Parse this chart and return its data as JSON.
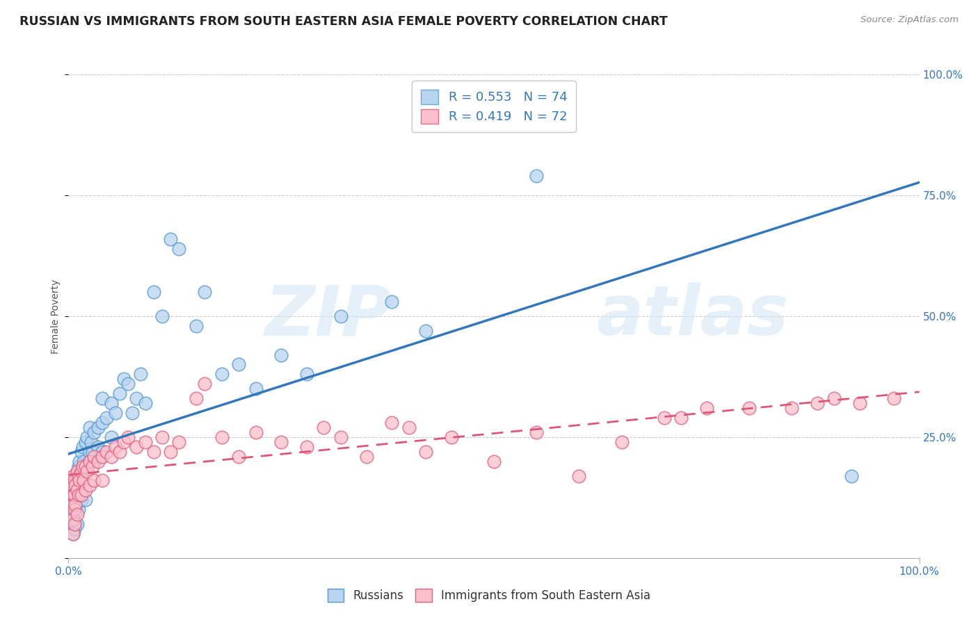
{
  "title": "RUSSIAN VS IMMIGRANTS FROM SOUTH EASTERN ASIA FEMALE POVERTY CORRELATION CHART",
  "source": "Source: ZipAtlas.com",
  "ylabel": "Female Poverty",
  "ytick_labels": [
    "",
    "25.0%",
    "50.0%",
    "75.0%",
    "100.0%"
  ],
  "ytick_positions": [
    0.0,
    0.25,
    0.5,
    0.75,
    1.0
  ],
  "right_ytick_labels": [
    "100.0%",
    "75.0%",
    "50.0%",
    "25.0%",
    ""
  ],
  "legend_entries": [
    {
      "label": "R = 0.553   N = 74",
      "facecolor": "#b8d4f0",
      "edgecolor": "#6aaad4"
    },
    {
      "label": "R = 0.419   N = 72",
      "facecolor": "#f9c0cc",
      "edgecolor": "#e8728a"
    }
  ],
  "watermark": "ZIPatlas",
  "blue_scatter_face": "#b8d4f0",
  "blue_scatter_edge": "#5599cc",
  "pink_scatter_face": "#f9c0cc",
  "pink_scatter_edge": "#e06080",
  "blue_line_color": "#3377bb",
  "pink_line_color": "#dd5577",
  "title_fontsize": 12.5,
  "axis_label_fontsize": 10,
  "tick_fontsize": 11,
  "background_color": "#ffffff",
  "grid_color": "#cccccc",
  "russians_x": [
    0.005,
    0.005,
    0.005,
    0.005,
    0.005,
    0.005,
    0.007,
    0.007,
    0.007,
    0.007,
    0.007,
    0.008,
    0.008,
    0.008,
    0.008,
    0.01,
    0.01,
    0.01,
    0.01,
    0.012,
    0.012,
    0.012,
    0.013,
    0.013,
    0.015,
    0.015,
    0.015,
    0.017,
    0.017,
    0.018,
    0.02,
    0.02,
    0.02,
    0.022,
    0.022,
    0.025,
    0.025,
    0.025,
    0.027,
    0.028,
    0.03,
    0.03,
    0.035,
    0.035,
    0.04,
    0.04,
    0.04,
    0.045,
    0.05,
    0.05,
    0.055,
    0.06,
    0.065,
    0.07,
    0.075,
    0.08,
    0.085,
    0.09,
    0.1,
    0.11,
    0.12,
    0.13,
    0.15,
    0.16,
    0.18,
    0.2,
    0.22,
    0.25,
    0.28,
    0.32,
    0.38,
    0.42,
    0.55,
    0.92
  ],
  "russians_y": [
    0.15,
    0.13,
    0.11,
    0.09,
    0.07,
    0.05,
    0.17,
    0.14,
    0.11,
    0.09,
    0.06,
    0.16,
    0.13,
    0.1,
    0.07,
    0.18,
    0.15,
    0.11,
    0.07,
    0.19,
    0.15,
    0.1,
    0.2,
    0.15,
    0.22,
    0.17,
    0.12,
    0.23,
    0.17,
    0.2,
    0.24,
    0.18,
    0.12,
    0.25,
    0.19,
    0.22,
    0.27,
    0.2,
    0.24,
    0.22,
    0.26,
    0.2,
    0.27,
    0.23,
    0.28,
    0.33,
    0.22,
    0.29,
    0.32,
    0.25,
    0.3,
    0.34,
    0.37,
    0.36,
    0.3,
    0.33,
    0.38,
    0.32,
    0.55,
    0.5,
    0.66,
    0.64,
    0.48,
    0.55,
    0.38,
    0.4,
    0.35,
    0.42,
    0.38,
    0.5,
    0.53,
    0.47,
    0.79,
    0.17
  ],
  "immigrants_x": [
    0.005,
    0.005,
    0.005,
    0.005,
    0.005,
    0.005,
    0.007,
    0.007,
    0.007,
    0.007,
    0.008,
    0.008,
    0.01,
    0.01,
    0.01,
    0.012,
    0.012,
    0.013,
    0.015,
    0.015,
    0.017,
    0.018,
    0.02,
    0.02,
    0.022,
    0.025,
    0.025,
    0.028,
    0.03,
    0.03,
    0.035,
    0.04,
    0.04,
    0.045,
    0.05,
    0.055,
    0.06,
    0.065,
    0.07,
    0.08,
    0.09,
    0.1,
    0.11,
    0.12,
    0.13,
    0.15,
    0.16,
    0.18,
    0.2,
    0.22,
    0.25,
    0.28,
    0.3,
    0.32,
    0.35,
    0.38,
    0.4,
    0.42,
    0.45,
    0.5,
    0.55,
    0.6,
    0.65,
    0.7,
    0.72,
    0.75,
    0.8,
    0.85,
    0.88,
    0.9,
    0.93,
    0.97
  ],
  "immigrants_y": [
    0.17,
    0.15,
    0.13,
    0.11,
    0.08,
    0.05,
    0.16,
    0.13,
    0.1,
    0.07,
    0.15,
    0.11,
    0.18,
    0.14,
    0.09,
    0.17,
    0.13,
    0.16,
    0.18,
    0.13,
    0.19,
    0.16,
    0.19,
    0.14,
    0.18,
    0.2,
    0.15,
    0.19,
    0.21,
    0.16,
    0.2,
    0.21,
    0.16,
    0.22,
    0.21,
    0.23,
    0.22,
    0.24,
    0.25,
    0.23,
    0.24,
    0.22,
    0.25,
    0.22,
    0.24,
    0.33,
    0.36,
    0.25,
    0.21,
    0.26,
    0.24,
    0.23,
    0.27,
    0.25,
    0.21,
    0.28,
    0.27,
    0.22,
    0.25,
    0.2,
    0.26,
    0.17,
    0.24,
    0.29,
    0.29,
    0.31,
    0.31,
    0.31,
    0.32,
    0.33,
    0.32,
    0.33
  ]
}
